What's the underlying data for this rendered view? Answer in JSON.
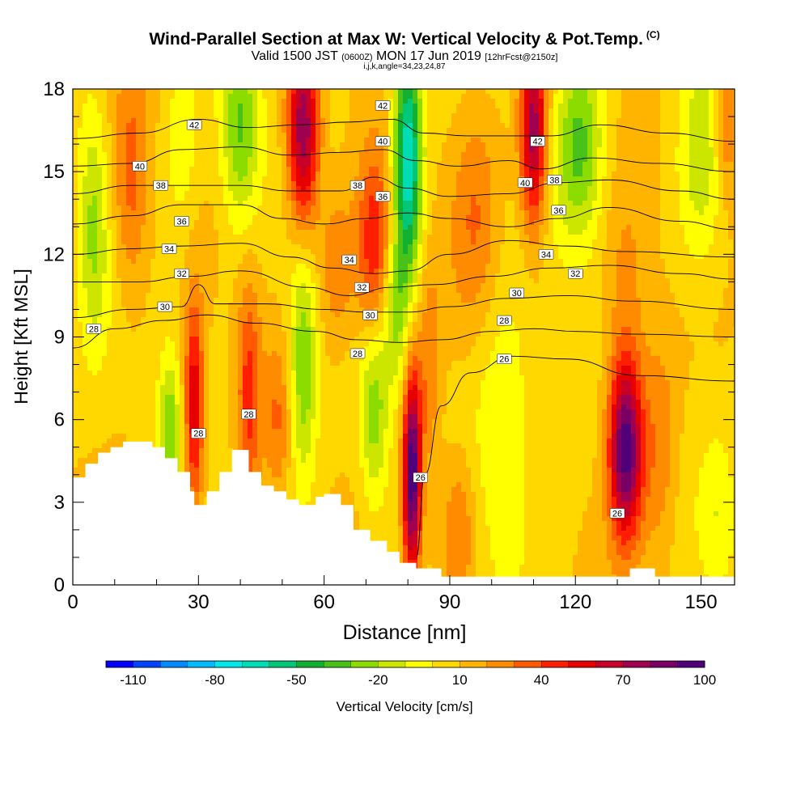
{
  "header": {
    "title": "Wind-Parallel Section at Max W: Vertical Velocity & Pot.Temp.",
    "copyright": "(C)",
    "valid_main": "Valid 1500 JST",
    "valid_utc": "(0600Z)",
    "valid_date": "MON 17 Jun 2019",
    "forecast": "[12hrFcst@2150z]",
    "params": "i,j,k,angle=34,23,24,87"
  },
  "colors": {
    "palette": [
      "#0000ff",
      "#0044ff",
      "#0088ff",
      "#00bbff",
      "#00e8e8",
      "#00dcb4",
      "#00c878",
      "#12b030",
      "#48c218",
      "#8cdc00",
      "#cce600",
      "#ffff00",
      "#ffd800",
      "#ffb400",
      "#ff8c00",
      "#ff5a00",
      "#ff1e00",
      "#e60000",
      "#c80028",
      "#a00050",
      "#780064",
      "#500078"
    ],
    "terrain": "#ffffff",
    "contour": "#000000"
  },
  "chart_data": {
    "type": "heatmap",
    "xlabel": "Distance [nm]",
    "ylabel": "Height [Kft MSL]",
    "xlim": [
      0,
      158
    ],
    "ylim": [
      0,
      18
    ],
    "x_ticks": [
      0,
      30,
      60,
      90,
      120,
      150
    ],
    "y_ticks": [
      0,
      3,
      6,
      9,
      12,
      15,
      18
    ],
    "colorbar": {
      "label": "Vertical Velocity [cm/s]",
      "min": -120,
      "max": 100,
      "step": 10,
      "tick_labels": [
        "-110",
        "-80",
        "-50",
        "-20",
        "10",
        "40",
        "70",
        "100"
      ]
    },
    "terrain_profile": [
      [
        0,
        3.9
      ],
      [
        3,
        3.9
      ],
      [
        3,
        4.4
      ],
      [
        6,
        4.4
      ],
      [
        6,
        4.8
      ],
      [
        9,
        4.8
      ],
      [
        9,
        5.0
      ],
      [
        12,
        5.0
      ],
      [
        12,
        5.2
      ],
      [
        19,
        5.2
      ],
      [
        19,
        5.0
      ],
      [
        22,
        5.0
      ],
      [
        22,
        4.6
      ],
      [
        25,
        4.6
      ],
      [
        25,
        4.1
      ],
      [
        28,
        4.1
      ],
      [
        28,
        3.4
      ],
      [
        29,
        3.4
      ],
      [
        29,
        2.9
      ],
      [
        32,
        2.9
      ],
      [
        32,
        3.4
      ],
      [
        35,
        3.4
      ],
      [
        35,
        4.1
      ],
      [
        38,
        4.1
      ],
      [
        38,
        4.9
      ],
      [
        42,
        4.9
      ],
      [
        42,
        4.1
      ],
      [
        45,
        4.1
      ],
      [
        45,
        3.6
      ],
      [
        48,
        3.6
      ],
      [
        48,
        3.4
      ],
      [
        51,
        3.4
      ],
      [
        51,
        3.1
      ],
      [
        54,
        3.1
      ],
      [
        54,
        2.9
      ],
      [
        58,
        2.9
      ],
      [
        58,
        3.2
      ],
      [
        60,
        3.2
      ],
      [
        60,
        3.3
      ],
      [
        64,
        3.3
      ],
      [
        64,
        2.9
      ],
      [
        67,
        2.9
      ],
      [
        67,
        2.0
      ],
      [
        71,
        2.0
      ],
      [
        71,
        1.6
      ],
      [
        75,
        1.6
      ],
      [
        75,
        1.2
      ],
      [
        78,
        1.2
      ],
      [
        78,
        0.8
      ],
      [
        82,
        0.8
      ],
      [
        82,
        0.6
      ],
      [
        88,
        0.6
      ],
      [
        88,
        0.3
      ],
      [
        133,
        0.3
      ],
      [
        133,
        0.6
      ],
      [
        139,
        0.6
      ],
      [
        139,
        0.3
      ],
      [
        158,
        0.3
      ]
    ],
    "w_features": [
      {
        "x": 29,
        "y": 6.5,
        "sx": 1.6,
        "sy": 2.6,
        "w": 55
      },
      {
        "x": 23,
        "y": 5.5,
        "sx": 1.8,
        "sy": 2.0,
        "w": -35
      },
      {
        "x": 42,
        "y": 7.0,
        "sx": 2.0,
        "sy": 3.0,
        "w": 35
      },
      {
        "x": 55,
        "y": 8.0,
        "sx": 2.4,
        "sy": 3.0,
        "w": -40
      },
      {
        "x": 49,
        "y": 6.0,
        "sx": 2.2,
        "sy": 2.0,
        "w": 20
      },
      {
        "x": 72,
        "y": 6.5,
        "sx": 2.4,
        "sy": 2.6,
        "w": -35
      },
      {
        "x": 81,
        "y": 4.0,
        "sx": 1.5,
        "sy": 2.6,
        "w": 95
      },
      {
        "x": 85,
        "y": 7.5,
        "sx": 2.0,
        "sy": 3.0,
        "w": 20
      },
      {
        "x": 103,
        "y": 5.5,
        "sx": 5.0,
        "sy": 3.5,
        "w": -20
      },
      {
        "x": 132,
        "y": 5.0,
        "sx": 2.8,
        "sy": 2.3,
        "w": 90
      },
      {
        "x": 140,
        "y": 5.0,
        "sx": 3.0,
        "sy": 3.0,
        "w": 20
      },
      {
        "x": 117,
        "y": 6.0,
        "sx": 2.4,
        "sy": 2.6,
        "w": -5
      },
      {
        "x": 110,
        "y": 16.5,
        "sx": 2.2,
        "sy": 2.5,
        "w": 70
      },
      {
        "x": 121,
        "y": 16.0,
        "sx": 4.0,
        "sy": 2.5,
        "w": -40
      },
      {
        "x": 150,
        "y": 15.5,
        "sx": 4.0,
        "sy": 3.0,
        "w": -25
      },
      {
        "x": 55,
        "y": 16.5,
        "sx": 2.6,
        "sy": 2.5,
        "w": 75
      },
      {
        "x": 40,
        "y": 16.5,
        "sx": 3.2,
        "sy": 2.5,
        "w": -40
      },
      {
        "x": 26,
        "y": 16.0,
        "sx": 3.0,
        "sy": 2.5,
        "w": -15
      },
      {
        "x": 80,
        "y": 15.5,
        "sx": 2.4,
        "sy": 3.0,
        "w": -80
      },
      {
        "x": 72,
        "y": 12.0,
        "sx": 3.0,
        "sy": 2.5,
        "w": 45
      },
      {
        "x": 63,
        "y": 11.5,
        "sx": 3.0,
        "sy": 2.0,
        "w": 20
      },
      {
        "x": 96,
        "y": 13.5,
        "sx": 4.0,
        "sy": 3.0,
        "w": 20
      },
      {
        "x": 77,
        "y": 10.0,
        "sx": 2.2,
        "sy": 2.0,
        "w": -30
      },
      {
        "x": 5,
        "y": 13.0,
        "sx": 2.5,
        "sy": 3.0,
        "w": -30
      },
      {
        "x": 14,
        "y": 14.5,
        "sx": 3.0,
        "sy": 3.0,
        "w": 25
      },
      {
        "x": 132,
        "y": 11.0,
        "sx": 4.0,
        "sy": 2.5,
        "w": 15
      },
      {
        "x": 156,
        "y": 17.0,
        "sx": 2.0,
        "sy": 2.0,
        "w": 30
      },
      {
        "x": 154,
        "y": 2.5,
        "sx": 3.0,
        "sy": 2.0,
        "w": -15
      },
      {
        "x": 92,
        "y": 2.0,
        "sx": 3.0,
        "sy": 2.0,
        "w": 25
      }
    ],
    "theta_contours": [
      {
        "label": "26",
        "points": [
          [
            82,
            1.0
          ],
          [
            84,
            4.0
          ],
          [
            88,
            6.5
          ],
          [
            95,
            7.7
          ],
          [
            105,
            8.3
          ],
          [
            118,
            8.2
          ],
          [
            135,
            7.6
          ],
          [
            158,
            7.4
          ]
        ]
      },
      {
        "label": "28",
        "points": [
          [
            0,
            8.6
          ],
          [
            10,
            9.3
          ],
          [
            22,
            9.6
          ],
          [
            32,
            9.8
          ],
          [
            44,
            9.5
          ],
          [
            58,
            9.2
          ],
          [
            68,
            8.9
          ],
          [
            78,
            8.8
          ],
          [
            88,
            8.9
          ],
          [
            100,
            9.2
          ],
          [
            110,
            9.3
          ],
          [
            120,
            9.2
          ],
          [
            135,
            9.1
          ],
          [
            158,
            9.0
          ]
        ]
      },
      {
        "label": "30",
        "points": [
          [
            0,
            9.7
          ],
          [
            14,
            10.0
          ],
          [
            26,
            10.1
          ],
          [
            30,
            10.9
          ],
          [
            34,
            10.2
          ],
          [
            46,
            10.2
          ],
          [
            60,
            10.0
          ],
          [
            70,
            9.9
          ],
          [
            80,
            9.9
          ],
          [
            90,
            10.1
          ],
          [
            104,
            10.4
          ],
          [
            118,
            10.5
          ],
          [
            134,
            10.3
          ],
          [
            158,
            10.0
          ]
        ]
      },
      {
        "label": "32",
        "points": [
          [
            0,
            11.0
          ],
          [
            16,
            11.0
          ],
          [
            28,
            11.2
          ],
          [
            40,
            11.4
          ],
          [
            56,
            10.8
          ],
          [
            66,
            10.5
          ],
          [
            76,
            10.8
          ],
          [
            86,
            10.9
          ],
          [
            100,
            11.2
          ],
          [
            114,
            11.5
          ],
          [
            128,
            11.6
          ],
          [
            145,
            11.3
          ],
          [
            158,
            11.1
          ]
        ]
      },
      {
        "label": "34",
        "points": [
          [
            0,
            12.0
          ],
          [
            14,
            12.2
          ],
          [
            26,
            12.3
          ],
          [
            40,
            12.4
          ],
          [
            52,
            11.9
          ],
          [
            62,
            11.5
          ],
          [
            72,
            11.3
          ],
          [
            80,
            11.4
          ],
          [
            90,
            12.0
          ],
          [
            104,
            12.5
          ],
          [
            118,
            12.3
          ],
          [
            132,
            12.1
          ],
          [
            158,
            11.9
          ]
        ]
      },
      {
        "label": "36",
        "points": [
          [
            0,
            13.1
          ],
          [
            14,
            13.4
          ],
          [
            26,
            13.8
          ],
          [
            40,
            13.8
          ],
          [
            50,
            13.3
          ],
          [
            60,
            13.1
          ],
          [
            70,
            13.3
          ],
          [
            80,
            13.5
          ],
          [
            90,
            13.3
          ],
          [
            104,
            13.0
          ],
          [
            116,
            13.3
          ],
          [
            128,
            13.7
          ],
          [
            145,
            13.2
          ],
          [
            158,
            12.9
          ]
        ]
      },
      {
        "label": "38",
        "points": [
          [
            0,
            14.2
          ],
          [
            14,
            14.5
          ],
          [
            26,
            14.5
          ],
          [
            40,
            14.5
          ],
          [
            52,
            14.3
          ],
          [
            64,
            14.3
          ],
          [
            72,
            14.8
          ],
          [
            80,
            14.4
          ],
          [
            90,
            14.1
          ],
          [
            104,
            14.2
          ],
          [
            116,
            14.6
          ],
          [
            128,
            14.7
          ],
          [
            145,
            14.3
          ],
          [
            158,
            14.0
          ]
        ]
      },
      {
        "label": "40",
        "points": [
          [
            0,
            15.2
          ],
          [
            14,
            15.3
          ],
          [
            26,
            15.8
          ],
          [
            40,
            15.9
          ],
          [
            52,
            15.6
          ],
          [
            64,
            15.7
          ],
          [
            74,
            15.8
          ],
          [
            82,
            15.4
          ],
          [
            92,
            15.2
          ],
          [
            104,
            15.4
          ],
          [
            112,
            15.1
          ],
          [
            124,
            15.5
          ],
          [
            140,
            15.3
          ],
          [
            158,
            15.0
          ]
        ]
      },
      {
        "label": "42",
        "points": [
          [
            0,
            16.2
          ],
          [
            16,
            16.4
          ],
          [
            30,
            16.9
          ],
          [
            42,
            16.6
          ],
          [
            54,
            16.7
          ],
          [
            66,
            16.8
          ],
          [
            76,
            16.9
          ],
          [
            84,
            16.4
          ],
          [
            94,
            16.3
          ],
          [
            106,
            16.3
          ],
          [
            114,
            16.3
          ],
          [
            126,
            16.7
          ],
          [
            142,
            16.4
          ],
          [
            158,
            16.1
          ]
        ]
      }
    ],
    "contour_labels": [
      {
        "text": "42",
        "x": 29,
        "y": 16.7
      },
      {
        "text": "40",
        "x": 16,
        "y": 15.2
      },
      {
        "text": "38",
        "x": 21,
        "y": 14.5
      },
      {
        "text": "36",
        "x": 26,
        "y": 13.2
      },
      {
        "text": "34",
        "x": 23,
        "y": 12.2
      },
      {
        "text": "32",
        "x": 26,
        "y": 11.3
      },
      {
        "text": "30",
        "x": 22,
        "y": 10.1
      },
      {
        "text": "28",
        "x": 5,
        "y": 9.3
      },
      {
        "text": "42",
        "x": 74,
        "y": 17.4
      },
      {
        "text": "40",
        "x": 74,
        "y": 16.1
      },
      {
        "text": "38",
        "x": 68,
        "y": 14.5
      },
      {
        "text": "36",
        "x": 74,
        "y": 14.1
      },
      {
        "text": "34",
        "x": 66,
        "y": 11.8
      },
      {
        "text": "32",
        "x": 69,
        "y": 10.8
      },
      {
        "text": "30",
        "x": 71,
        "y": 9.8
      },
      {
        "text": "28",
        "x": 68,
        "y": 8.4
      },
      {
        "text": "42",
        "x": 111,
        "y": 16.1
      },
      {
        "text": "40",
        "x": 108,
        "y": 14.6
      },
      {
        "text": "38",
        "x": 115,
        "y": 14.7
      },
      {
        "text": "36",
        "x": 116,
        "y": 13.6
      },
      {
        "text": "34",
        "x": 113,
        "y": 12.0
      },
      {
        "text": "32",
        "x": 120,
        "y": 11.3
      },
      {
        "text": "30",
        "x": 106,
        "y": 10.6
      },
      {
        "text": "28",
        "x": 103,
        "y": 9.6
      },
      {
        "text": "26",
        "x": 103,
        "y": 8.2
      },
      {
        "text": "28",
        "x": 30,
        "y": 5.5
      },
      {
        "text": "28",
        "x": 42,
        "y": 6.2
      },
      {
        "text": "26",
        "x": 83,
        "y": 3.9
      },
      {
        "text": "26",
        "x": 130,
        "y": 2.6
      }
    ]
  }
}
